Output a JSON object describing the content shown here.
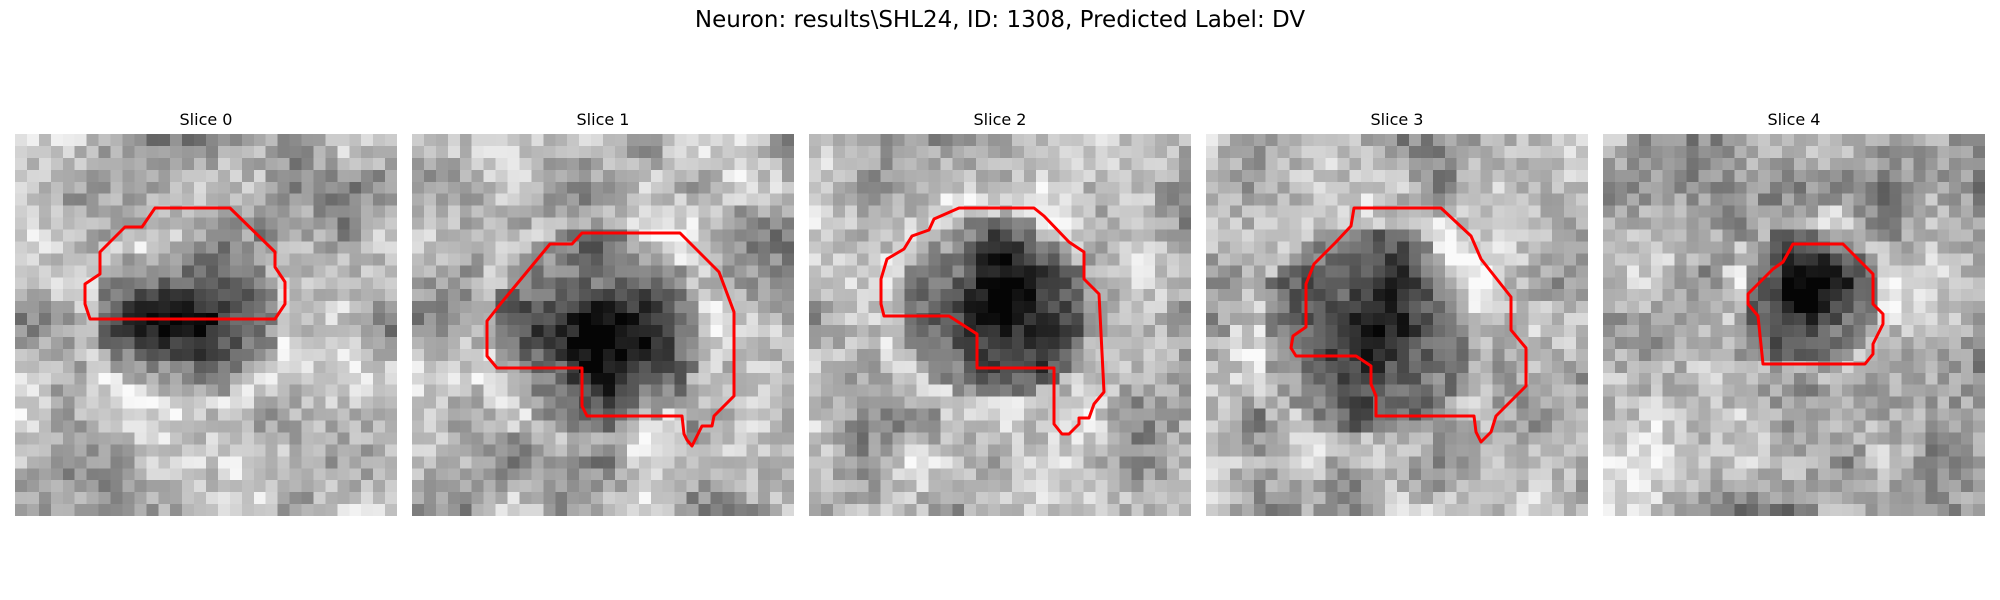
{
  "figure": {
    "title": "Neuron: results\\SHL24, ID: 1308, Predicted Label: DV",
    "outline_color": "#ff0000"
  },
  "slices": [
    {
      "label": "Slice 0"
    },
    {
      "label": "Slice 1"
    },
    {
      "label": "Slice 2"
    },
    {
      "label": "Slice 3"
    },
    {
      "label": "Slice 4"
    }
  ]
}
